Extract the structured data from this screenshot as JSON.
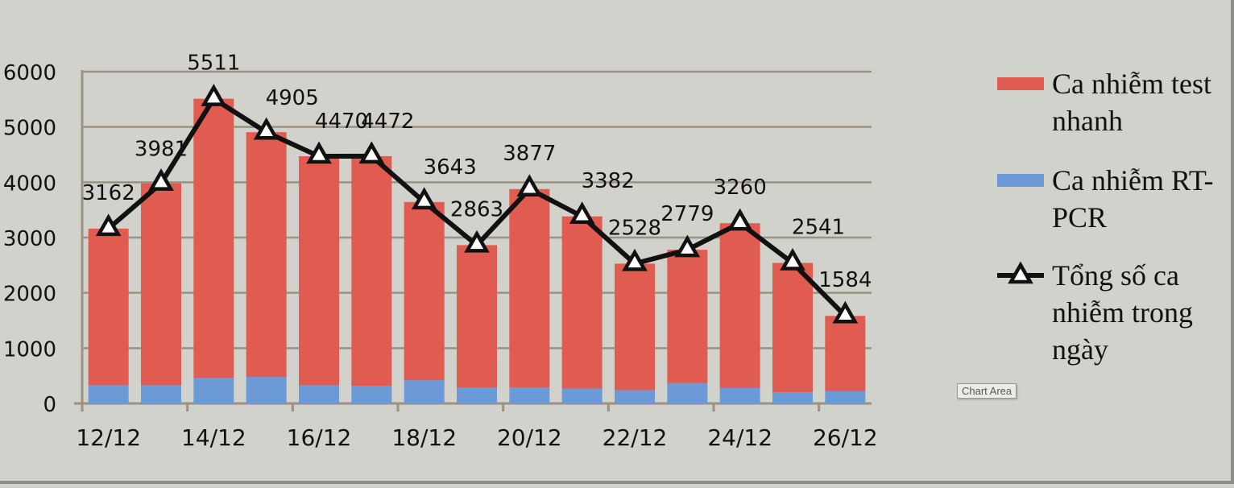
{
  "chart_data": {
    "type": "bar",
    "stacked": true,
    "categories": [
      "12/12",
      "13/12",
      "14/12",
      "15/12",
      "16/12",
      "17/12",
      "18/12",
      "19/12",
      "20/12",
      "21/12",
      "22/12",
      "23/12",
      "24/12",
      "25/12",
      "26/12"
    ],
    "x_tick_labels": [
      "12/12",
      "14/12",
      "16/12",
      "18/12",
      "20/12",
      "22/12",
      "24/12",
      "26/12"
    ],
    "series": [
      {
        "name": "Ca nhiễm RT-PCR",
        "type": "bar",
        "color": "#6b9ad6",
        "values": [
          330,
          330,
          460,
          480,
          330,
          320,
          420,
          290,
          290,
          270,
          240,
          370,
          280,
          200,
          220
        ]
      },
      {
        "name": "Ca nhiễm test nhanh",
        "type": "bar",
        "color": "#e05c50",
        "values": [
          2832,
          3651,
          5051,
          4425,
          4140,
          4152,
          3223,
          2573,
          3587,
          3112,
          2288,
          2409,
          2980,
          2341,
          1364
        ]
      },
      {
        "name": "Tổng số ca nhiễm trong ngày",
        "type": "line",
        "color": "#111111",
        "values": [
          3162,
          3981,
          5511,
          4905,
          4470,
          4472,
          3643,
          2863,
          3877,
          3382,
          2528,
          2779,
          3260,
          2541,
          1584
        ],
        "data_labels": [
          "3162",
          "3981",
          "5511",
          "4905",
          "4470",
          "4472",
          "3643",
          "2863",
          "3877",
          "3382",
          "2528",
          "2779",
          "3260",
          "2541",
          "1584"
        ]
      }
    ],
    "legend": {
      "position": "right",
      "items": [
        {
          "lines": [
            "Ca nhiễm test",
            "nhanh"
          ],
          "color": "#e05c50",
          "marker": "bar"
        },
        {
          "lines": [
            "Ca nhiễm RT-",
            "PCR"
          ],
          "color": "#6b9ad6",
          "marker": "bar"
        },
        {
          "lines": [
            "Tổng số ca",
            "nhiễm trong",
            "ngày"
          ],
          "color": "#111111",
          "marker": "line-triangle"
        }
      ]
    },
    "ylim": [
      0,
      6000
    ],
    "yticks": [
      0,
      1000,
      2000,
      3000,
      4000,
      5000,
      6000
    ],
    "grid": true,
    "tooltip": "Chart Area"
  }
}
